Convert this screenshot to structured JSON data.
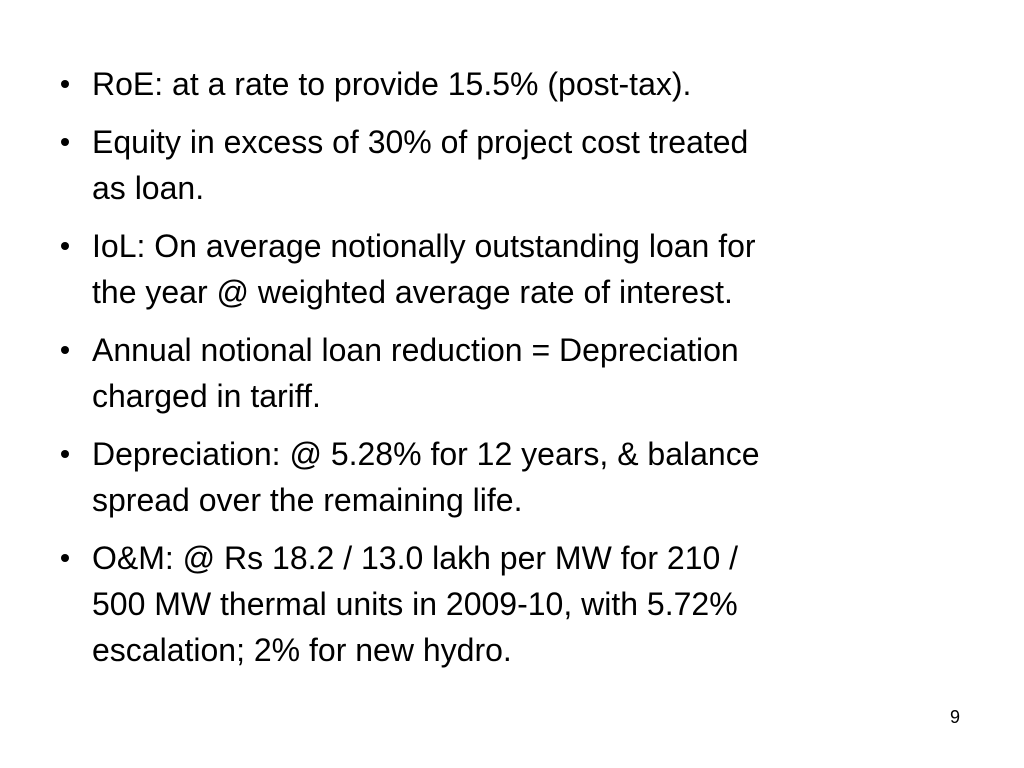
{
  "slide": {
    "bullets": [
      {
        "lines": [
          "RoE: at a rate to provide 15.5% (post-tax)."
        ]
      },
      {
        "lines": [
          "Equity in excess of 30% of project cost treated",
          "as loan."
        ]
      },
      {
        "lines": [
          "IoL: On average notionally outstanding loan for",
          "the year @ weighted average rate of interest."
        ]
      },
      {
        "lines": [
          "Annual notional loan reduction = Depreciation",
          "charged in tariff."
        ]
      },
      {
        "lines": [
          "Depreciation: @ 5.28% for 12 years, & balance",
          "spread over the remaining life."
        ]
      },
      {
        "lines": [
          "O&M: @ Rs 18.2 / 13.0 lakh per MW for 210 /",
          "500 MW thermal units in 2009-10, with 5.72%",
          "escalation; 2% for new hydro."
        ]
      }
    ],
    "page_number": "9"
  }
}
